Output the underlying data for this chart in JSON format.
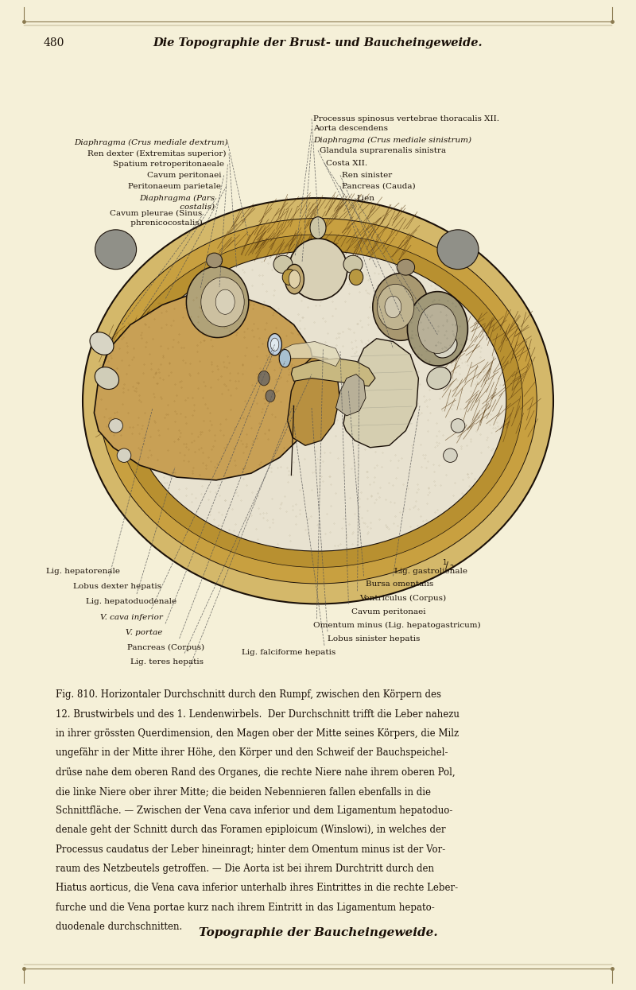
{
  "bg_color": "#f5f0d8",
  "border_color": "#8a7a50",
  "page_number": "480",
  "header_title": "Die Topographie der Brust- und Baucheingeweide.",
  "footer_title": "Topographie der Baucheingeweide.",
  "fig_caption_lines": [
    "Fig. 810. Horizontaler Durchschnitt durch den Rumpf, zwischen den Körpern des",
    "12. Brustwirbels und des 1. Lendenwirbels.  Der Durchschnitt trifft die Leber nahezu",
    "in ihrer grössten Querdimension, den Magen ober der Mitte seines Körpers, die Milz",
    "ungefähr in der Mitte ihrer Höhe, den Körper und den Schweif der Bauchspeichel-",
    "drüse nahe dem oberen Rand des Organes, die rechte Niere nahe ihrem oberen Pol,",
    "die linke Niere ober ihrer Mitte; die beiden Nebennieren fallen ebenfalls in die",
    "Schnittfläche. — Zwischen der Vena cava inferior und dem Ligamentum hepatoduo-",
    "denale geht der Schnitt durch das Foramen epiploicum (Winslowi), in welches der",
    "Processus caudatus der Leber hineinragt; hinter dem Omentum minus ist der Vor-",
    "raum des Netzbeutels getroffen. — Die Aorta ist bei ihrem Durchtritt durch den",
    "Hiatus aorticus, die Vena cava inferior unterhalb ihres Eintrittes in die rechte Leber-",
    "furche und die Vena portae kurz nach ihrem Eintritt in das Ligamentum hepato-",
    "duodenale durchschnitten."
  ]
}
